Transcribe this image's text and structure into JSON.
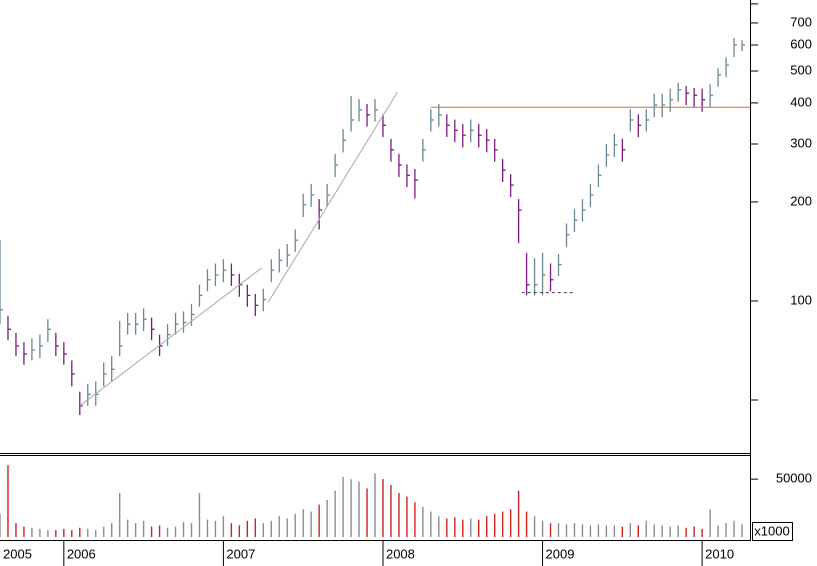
{
  "chart_data": [
    {
      "type": "ohlc",
      "x": [
        2005.6,
        2005.65,
        2005.7,
        2005.75,
        2005.8,
        2005.85,
        2005.9,
        2005.95,
        2006.0,
        2006.05,
        2006.1,
        2006.15,
        2006.2,
        2006.25,
        2006.3,
        2006.35,
        2006.4,
        2006.45,
        2006.5,
        2006.55,
        2006.6,
        2006.65,
        2006.7,
        2006.75,
        2006.8,
        2006.85,
        2006.9,
        2006.95,
        2007.0,
        2007.05,
        2007.1,
        2007.15,
        2007.2,
        2007.25,
        2007.3,
        2007.35,
        2007.4,
        2007.45,
        2007.5,
        2007.55,
        2007.6,
        2007.65,
        2007.7,
        2007.75,
        2007.8,
        2007.85,
        2007.9,
        2007.95,
        2008.0,
        2008.05,
        2008.1,
        2008.15,
        2008.2,
        2008.25,
        2008.3,
        2008.35,
        2008.4,
        2008.45,
        2008.5,
        2008.55,
        2008.6,
        2008.65,
        2008.7,
        2008.75,
        2008.8,
        2008.85,
        2008.9,
        2008.95,
        2009.0,
        2009.05,
        2009.1,
        2009.15,
        2009.2,
        2009.25,
        2009.3,
        2009.35,
        2009.4,
        2009.45,
        2009.5,
        2009.55,
        2009.6,
        2009.65,
        2009.7,
        2009.75,
        2009.8,
        2009.85,
        2009.9,
        2009.95,
        2010.0,
        2010.05,
        2010.1,
        2010.15,
        2010.2,
        2010.25
      ],
      "high": [
        153,
        90,
        80,
        75,
        77,
        79,
        88,
        80,
        75,
        66,
        53,
        56,
        57,
        65,
        68,
        87,
        92,
        92,
        95,
        89,
        79,
        85,
        92,
        93,
        98,
        112,
        125,
        130,
        134,
        130,
        121,
        112,
        105,
        109,
        134,
        144,
        149,
        165,
        212,
        227,
        204,
        227,
        280,
        333,
        420,
        411,
        397,
        411,
        369,
        311,
        280,
        260,
        252,
        311,
        383,
        397,
        369,
        356,
        345,
        356,
        345,
        333,
        311,
        270,
        243,
        204,
        140,
        135,
        140,
        130,
        139,
        172,
        190,
        204,
        227,
        260,
        300,
        322,
        311,
        383,
        369,
        383,
        426,
        426,
        442,
        460,
        450,
        444,
        442,
        456,
        510,
        550,
        630,
        620
      ],
      "low": [
        85,
        76,
        68,
        64,
        66,
        67,
        75,
        68,
        64,
        55,
        45,
        48,
        48,
        55,
        57,
        68,
        79,
        79,
        81,
        76,
        68,
        73,
        79,
        80,
        84,
        96,
        107,
        111,
        114,
        111,
        103,
        96,
        90,
        93,
        114,
        122,
        127,
        141,
        180,
        193,
        165,
        193,
        238,
        283,
        327,
        351,
        339,
        351,
        315,
        265,
        238,
        222,
        205,
        265,
        327,
        339,
        315,
        304,
        293,
        304,
        293,
        283,
        265,
        230,
        207,
        150,
        104,
        104,
        104,
        107,
        119,
        146,
        162,
        174,
        193,
        222,
        256,
        274,
        265,
        327,
        315,
        327,
        362,
        362,
        376,
        403,
        394,
        388,
        376,
        388,
        448,
        479,
        552,
        575
      ],
      "close": [
        94,
        82,
        73,
        69,
        71,
        73,
        82,
        73,
        69,
        60,
        48,
        52,
        52,
        60,
        62,
        73,
        85,
        85,
        88,
        82,
        73,
        79,
        85,
        86,
        91,
        104,
        116,
        120,
        124,
        120,
        112,
        104,
        97,
        101,
        124,
        133,
        138,
        153,
        196,
        210,
        189,
        210,
        259,
        308,
        355,
        381,
        368,
        381,
        342,
        288,
        259,
        241,
        233,
        288,
        355,
        368,
        342,
        330,
        319,
        330,
        319,
        308,
        288,
        250,
        225,
        189,
        112,
        112,
        120,
        116,
        129,
        159,
        176,
        189,
        210,
        241,
        278,
        298,
        288,
        355,
        342,
        355,
        394,
        394,
        409,
        438,
        428,
        422,
        409,
        422,
        487,
        521,
        600,
        600
      ],
      "up_color": "#6a8794",
      "down_color": "#7a1a80",
      "xlim": [
        2005.6,
        2010.3
      ],
      "xticks": [
        2005,
        2006,
        2007,
        2008,
        2009,
        2010
      ],
      "ylim": [
        34.5,
        822
      ],
      "log_scale": true,
      "yticks": [
        100,
        200,
        300,
        400,
        500,
        600,
        700
      ],
      "minor_yticks": [
        50,
        800
      ],
      "lines": [
        {
          "x": [
            2006.1,
            2007.24
          ],
          "y": [
            48,
            126
          ],
          "color": "#a8a8a8",
          "dashed": false
        },
        {
          "x": [
            2007.28,
            2008.09
          ],
          "y": [
            99,
            431
          ],
          "color": "#a8a8a8",
          "dashed": false
        },
        {
          "x": [
            2008.3,
            2010.3
          ],
          "y": [
            388,
            388
          ],
          "color": "#e07020",
          "dashed": false
        },
        {
          "x": [
            2008.87,
            2009.2
          ],
          "y": [
            106,
            106
          ],
          "color": "#404040",
          "dashed": true
        }
      ]
    },
    {
      "type": "volume",
      "values": [
        20000,
        62000,
        12000,
        9000,
        8000,
        7000,
        6000,
        6000,
        7000,
        6000,
        8000,
        7000,
        6000,
        9000,
        12000,
        38000,
        15000,
        12000,
        14000,
        9000,
        10000,
        8000,
        9000,
        13000,
        12000,
        38000,
        15000,
        14000,
        18000,
        12000,
        10000,
        14000,
        16000,
        12000,
        14000,
        18000,
        16000,
        20000,
        24000,
        22000,
        28000,
        32000,
        40000,
        52000,
        50000,
        48000,
        42000,
        55000,
        50000,
        45000,
        38000,
        35000,
        30000,
        26000,
        22000,
        18000,
        16000,
        17000,
        15000,
        16000,
        15000,
        18000,
        20000,
        22000,
        24000,
        40000,
        22000,
        18000,
        14000,
        12000,
        12000,
        11000,
        12000,
        11000,
        10000,
        11000,
        10000,
        10000,
        9000,
        12000,
        10000,
        14000,
        11000,
        10000,
        9000,
        10000,
        8000,
        9000,
        7000,
        24000,
        10000,
        12000,
        14000,
        11000
      ],
      "up_color": "#8c8c8c",
      "down_color": "#cc2222",
      "ylim": [
        0,
        70000
      ],
      "yticks": [
        50000
      ],
      "unit_label": "x1000"
    }
  ]
}
